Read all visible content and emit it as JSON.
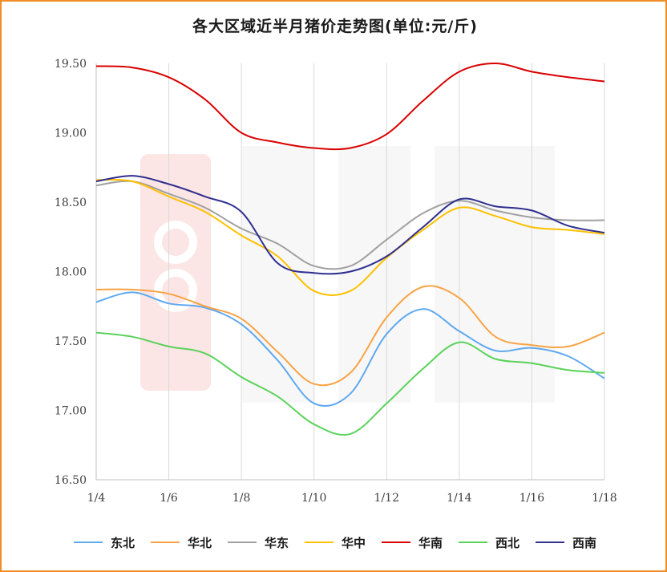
{
  "chart_data": {
    "type": "line",
    "title": "各大区域近半月猪价走势图(单位:元/斤)",
    "xlabel": "",
    "ylabel": "",
    "x": [
      "1/4",
      "1/5",
      "1/6",
      "1/7",
      "1/8",
      "1/9",
      "1/10",
      "1/11",
      "1/12",
      "1/13",
      "1/14",
      "1/15",
      "1/16",
      "1/17",
      "1/18"
    ],
    "x_tick_labels": [
      "1/4",
      "1/6",
      "1/8",
      "1/10",
      "1/12",
      "1/14",
      "1/16",
      "1/18"
    ],
    "ylim": [
      16.5,
      19.5
    ],
    "y_ticks": [
      "16.50",
      "17.00",
      "17.50",
      "18.00",
      "18.50",
      "19.00",
      "19.50"
    ],
    "grid": "vertical",
    "legend_position": "bottom",
    "series": [
      {
        "name": "东北",
        "color": "#5fa8f0",
        "values": [
          17.78,
          17.85,
          17.77,
          17.74,
          17.62,
          17.36,
          17.05,
          17.12,
          17.55,
          17.73,
          17.57,
          17.43,
          17.45,
          17.39,
          17.23
        ]
      },
      {
        "name": "华北",
        "color": "#f7a345",
        "values": [
          17.87,
          17.87,
          17.84,
          17.75,
          17.66,
          17.42,
          17.19,
          17.27,
          17.67,
          17.89,
          17.81,
          17.53,
          17.47,
          17.46,
          17.56
        ]
      },
      {
        "name": "华东",
        "color": "#a0a0a0",
        "values": [
          18.62,
          18.65,
          18.56,
          18.46,
          18.31,
          18.2,
          18.04,
          18.04,
          18.23,
          18.42,
          18.51,
          18.44,
          18.39,
          18.37,
          18.37
        ]
      },
      {
        "name": "华中",
        "color": "#ffc000",
        "values": [
          18.66,
          18.65,
          18.54,
          18.43,
          18.26,
          18.11,
          17.86,
          17.86,
          18.1,
          18.3,
          18.46,
          18.4,
          18.32,
          18.3,
          18.27
        ]
      },
      {
        "name": "华南",
        "color": "#d90000",
        "values": [
          19.48,
          19.47,
          19.4,
          19.24,
          19.0,
          18.93,
          18.89,
          18.89,
          18.99,
          19.23,
          19.44,
          19.5,
          19.44,
          19.4,
          19.37
        ]
      },
      {
        "name": "西北",
        "color": "#5ad25a",
        "values": [
          17.56,
          17.53,
          17.46,
          17.41,
          17.24,
          17.1,
          16.9,
          16.83,
          17.05,
          17.3,
          17.49,
          17.37,
          17.34,
          17.29,
          17.27
        ]
      },
      {
        "name": "西南",
        "color": "#2e2f8f",
        "values": [
          18.65,
          18.69,
          18.63,
          18.54,
          18.43,
          18.06,
          17.99,
          18.0,
          18.11,
          18.32,
          18.52,
          18.47,
          18.44,
          18.33,
          18.28
        ]
      }
    ]
  }
}
